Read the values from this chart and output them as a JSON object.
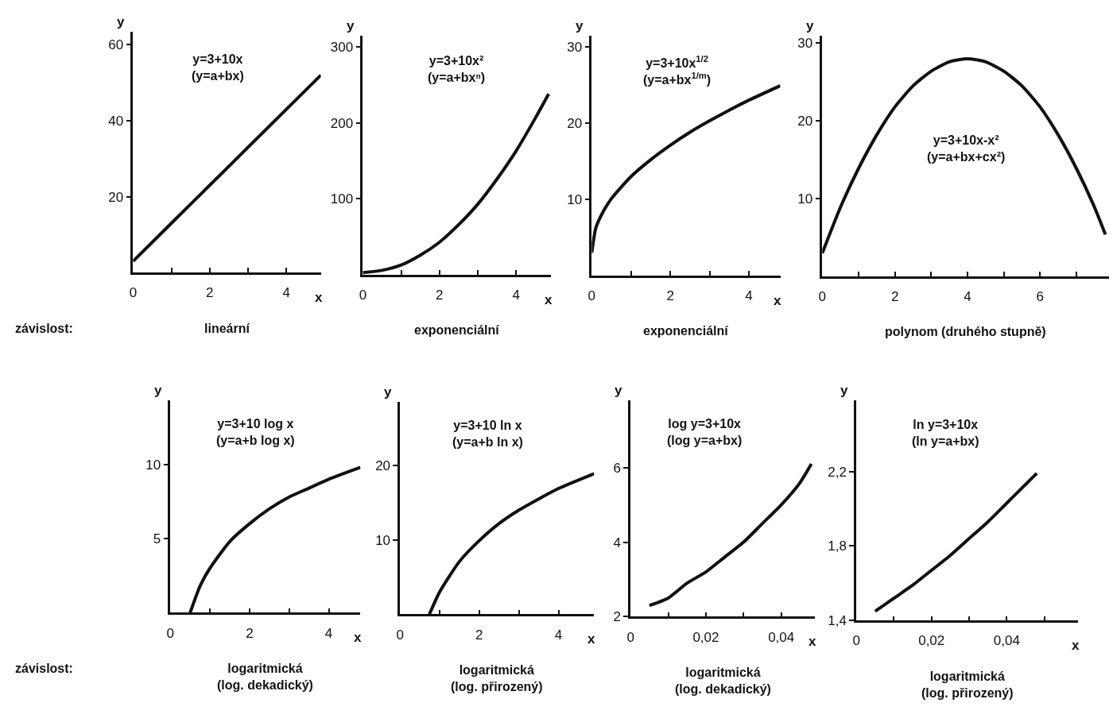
{
  "chart_data": [
    {
      "type": "line",
      "title": "y=3+10x\n(y=a+bx)",
      "subtitle": "lineární",
      "annotations": [
        "závislost:"
      ],
      "xlabel": "x",
      "ylabel": "y",
      "x": [
        0,
        1,
        2,
        3,
        4,
        4.9
      ],
      "series": [
        {
          "color": "#111111",
          "values": [
            3,
            13,
            23,
            33,
            43,
            52
          ]
        }
      ],
      "xlim": [
        0,
        4.9
      ],
      "ylim": [
        0,
        63.5
      ],
      "xticks": [
        0,
        {
          "value": 1,
          "label": null
        },
        2,
        {
          "value": 3,
          "label": null
        },
        4
      ],
      "yticks": [
        20,
        40,
        60
      ]
    },
    {
      "type": "line",
      "title": "y=3+10x²\n(y=a+bxⁿ)",
      "subtitle": "exponenciální",
      "xlabel": "x",
      "ylabel": "y",
      "x": [
        0,
        0.5,
        1,
        1.5,
        2,
        2.5,
        3,
        3.5,
        4,
        4.5,
        4.85
      ],
      "series": [
        {
          "color": "#111111",
          "values": [
            3,
            6,
            13,
            26,
            43,
            66,
            93,
            126,
            163,
            206,
            238
          ]
        }
      ],
      "xlim": [
        0,
        4.9
      ],
      "ylim": [
        0,
        315
      ],
      "xticks": [
        0,
        {
          "value": 1,
          "label": null
        },
        2,
        {
          "value": 3,
          "label": null
        },
        4
      ],
      "yticks": [
        100,
        200,
        300
      ]
    },
    {
      "type": "line",
      "title": "y=3+10x$^{1/2}$\n(y=a+bx$^{1/m}$)",
      "subtitle": "exponenciální",
      "xlabel": "x",
      "ylabel": "y",
      "x": [
        0,
        0.1,
        0.25,
        0.5,
        1,
        1.5,
        2,
        2.5,
        3,
        3.5,
        4,
        4.8
      ],
      "series": [
        {
          "color": "#111111",
          "values": [
            3,
            6.2,
            8,
            10.1,
            13,
            15.2,
            17.1,
            18.8,
            20.3,
            21.7,
            23,
            24.9
          ]
        }
      ],
      "xlim": [
        0,
        4.8
      ],
      "ylim": [
        0,
        31.5
      ],
      "xticks": [
        0,
        {
          "value": 1,
          "label": null
        },
        2,
        {
          "value": 3,
          "label": null
        },
        4
      ],
      "yticks": [
        10,
        20,
        30
      ]
    },
    {
      "type": "line",
      "title": "y=3+10x-x²\n(y=a+bx+cx²)",
      "subtitle": "polynom (druhého stupně)",
      "ylabel": "y",
      "x": [
        0,
        0.5,
        1,
        1.5,
        2,
        2.5,
        3,
        3.5,
        4,
        4.5,
        5,
        5.5,
        6,
        6.5,
        7,
        7.5,
        7.8
      ],
      "series": [
        {
          "color": "#111111",
          "values": [
            3,
            8.9,
            13.9,
            18.2,
            21.8,
            24.5,
            26.4,
            27.6,
            28,
            27.6,
            26.4,
            24.5,
            21.8,
            18.2,
            13.9,
            8.9,
            5.4
          ]
        }
      ],
      "xlim": [
        0,
        7.9
      ],
      "ylim": [
        0,
        31
      ],
      "xticks": [
        0,
        {
          "value": 1,
          "label": null
        },
        2,
        {
          "value": 3,
          "label": null
        },
        4,
        {
          "value": 5,
          "label": null
        },
        6,
        {
          "value": 7,
          "label": null
        }
      ],
      "yticks": [
        10,
        20,
        30
      ]
    },
    {
      "type": "line",
      "title": "y=3+10 log x\n(y=a+b log x)",
      "subtitle": "logaritmická\n(log. dekadický)",
      "annotations": [
        "závislost:"
      ],
      "xlabel": "x",
      "ylabel": "y",
      "x": [
        0.5,
        0.75,
        1,
        1.5,
        2,
        2.5,
        3,
        3.5,
        4,
        4.8
      ],
      "series": [
        {
          "color": "#111111",
          "values": [
            0,
            1.8,
            3,
            4.8,
            6,
            7,
            7.8,
            8.4,
            9,
            9.8
          ]
        }
      ],
      "xlim": [
        0,
        4.8
      ],
      "ylim": [
        0,
        14.3
      ],
      "xticks": [
        0,
        {
          "value": 1,
          "label": null
        },
        2,
        {
          "value": 3,
          "label": null
        },
        4
      ],
      "yticks": [
        5,
        10
      ]
    },
    {
      "type": "line",
      "title": "y=3+10 ln x\n(y=a+b ln x)",
      "subtitle": "logaritmická\n(log. přirozený)",
      "xlabel": "x",
      "ylabel": "y",
      "x": [
        0.74,
        1,
        1.5,
        2,
        2.5,
        3,
        3.5,
        4,
        4.9
      ],
      "series": [
        {
          "color": "#111111",
          "values": [
            0,
            3,
            7.1,
            9.9,
            12.2,
            14,
            15.5,
            16.9,
            18.9
          ]
        }
      ],
      "xlim": [
        0,
        4.9
      ],
      "ylim": [
        0,
        28.5
      ],
      "xticks": [
        0,
        {
          "value": 1,
          "label": null
        },
        2,
        {
          "value": 3,
          "label": null
        },
        4
      ],
      "yticks": [
        10,
        20
      ]
    },
    {
      "type": "line",
      "title": "log y=3+10x\n(log y=a+bx)",
      "subtitle": "logaritmická\n(log. dekadický)",
      "xlabel": "x",
      "ylabel": "y",
      "x": [
        0.005,
        0.01,
        0.015,
        0.02,
        0.025,
        0.03,
        0.035,
        0.04,
        0.045,
        0.048
      ],
      "series": [
        {
          "color": "#111111",
          "values": [
            2.3,
            2.5,
            2.9,
            3.2,
            3.6,
            4.0,
            4.5,
            5.0,
            5.6,
            6.1
          ]
        }
      ],
      "xlim": [
        0,
        0.049
      ],
      "ylim": [
        2,
        7.8
      ],
      "xticks": [
        0,
        {
          "value": 0.01,
          "label": null
        },
        {
          "value": 0.02,
          "label": "0,02"
        },
        {
          "value": 0.03,
          "label": null
        },
        {
          "value": 0.04,
          "label": "0,04"
        }
      ],
      "yticks": [
        2,
        4,
        6
      ]
    },
    {
      "type": "line",
      "title": "ln y=3+10x\n(ln y=a+bx)",
      "subtitle": "logaritmická\n(log. přirozený)",
      "xlabel": "x",
      "ylabel": "y",
      "x": [
        0.005,
        0.01,
        0.015,
        0.02,
        0.025,
        0.03,
        0.035,
        0.04,
        0.045,
        0.048
      ],
      "series": [
        {
          "color": "#111111",
          "values": [
            1.45,
            1.52,
            1.59,
            1.67,
            1.75,
            1.84,
            1.93,
            2.03,
            2.13,
            2.19
          ]
        }
      ],
      "xlim": [
        0,
        0.059
      ],
      "ylim": [
        1.4,
        2.58
      ],
      "xticks": [
        0,
        {
          "value": 0.01,
          "label": null
        },
        {
          "value": 0.02,
          "label": "0,02"
        },
        {
          "value": 0.03,
          "label": null
        },
        {
          "value": 0.04,
          "label": "0,04"
        },
        {
          "value": 0.05,
          "label": null
        }
      ],
      "yticks": [
        {
          "value": 1.4,
          "label": "1,4"
        },
        {
          "value": 1.8,
          "label": "1,8"
        },
        {
          "value": 2.2,
          "label": "2,2"
        }
      ]
    }
  ]
}
